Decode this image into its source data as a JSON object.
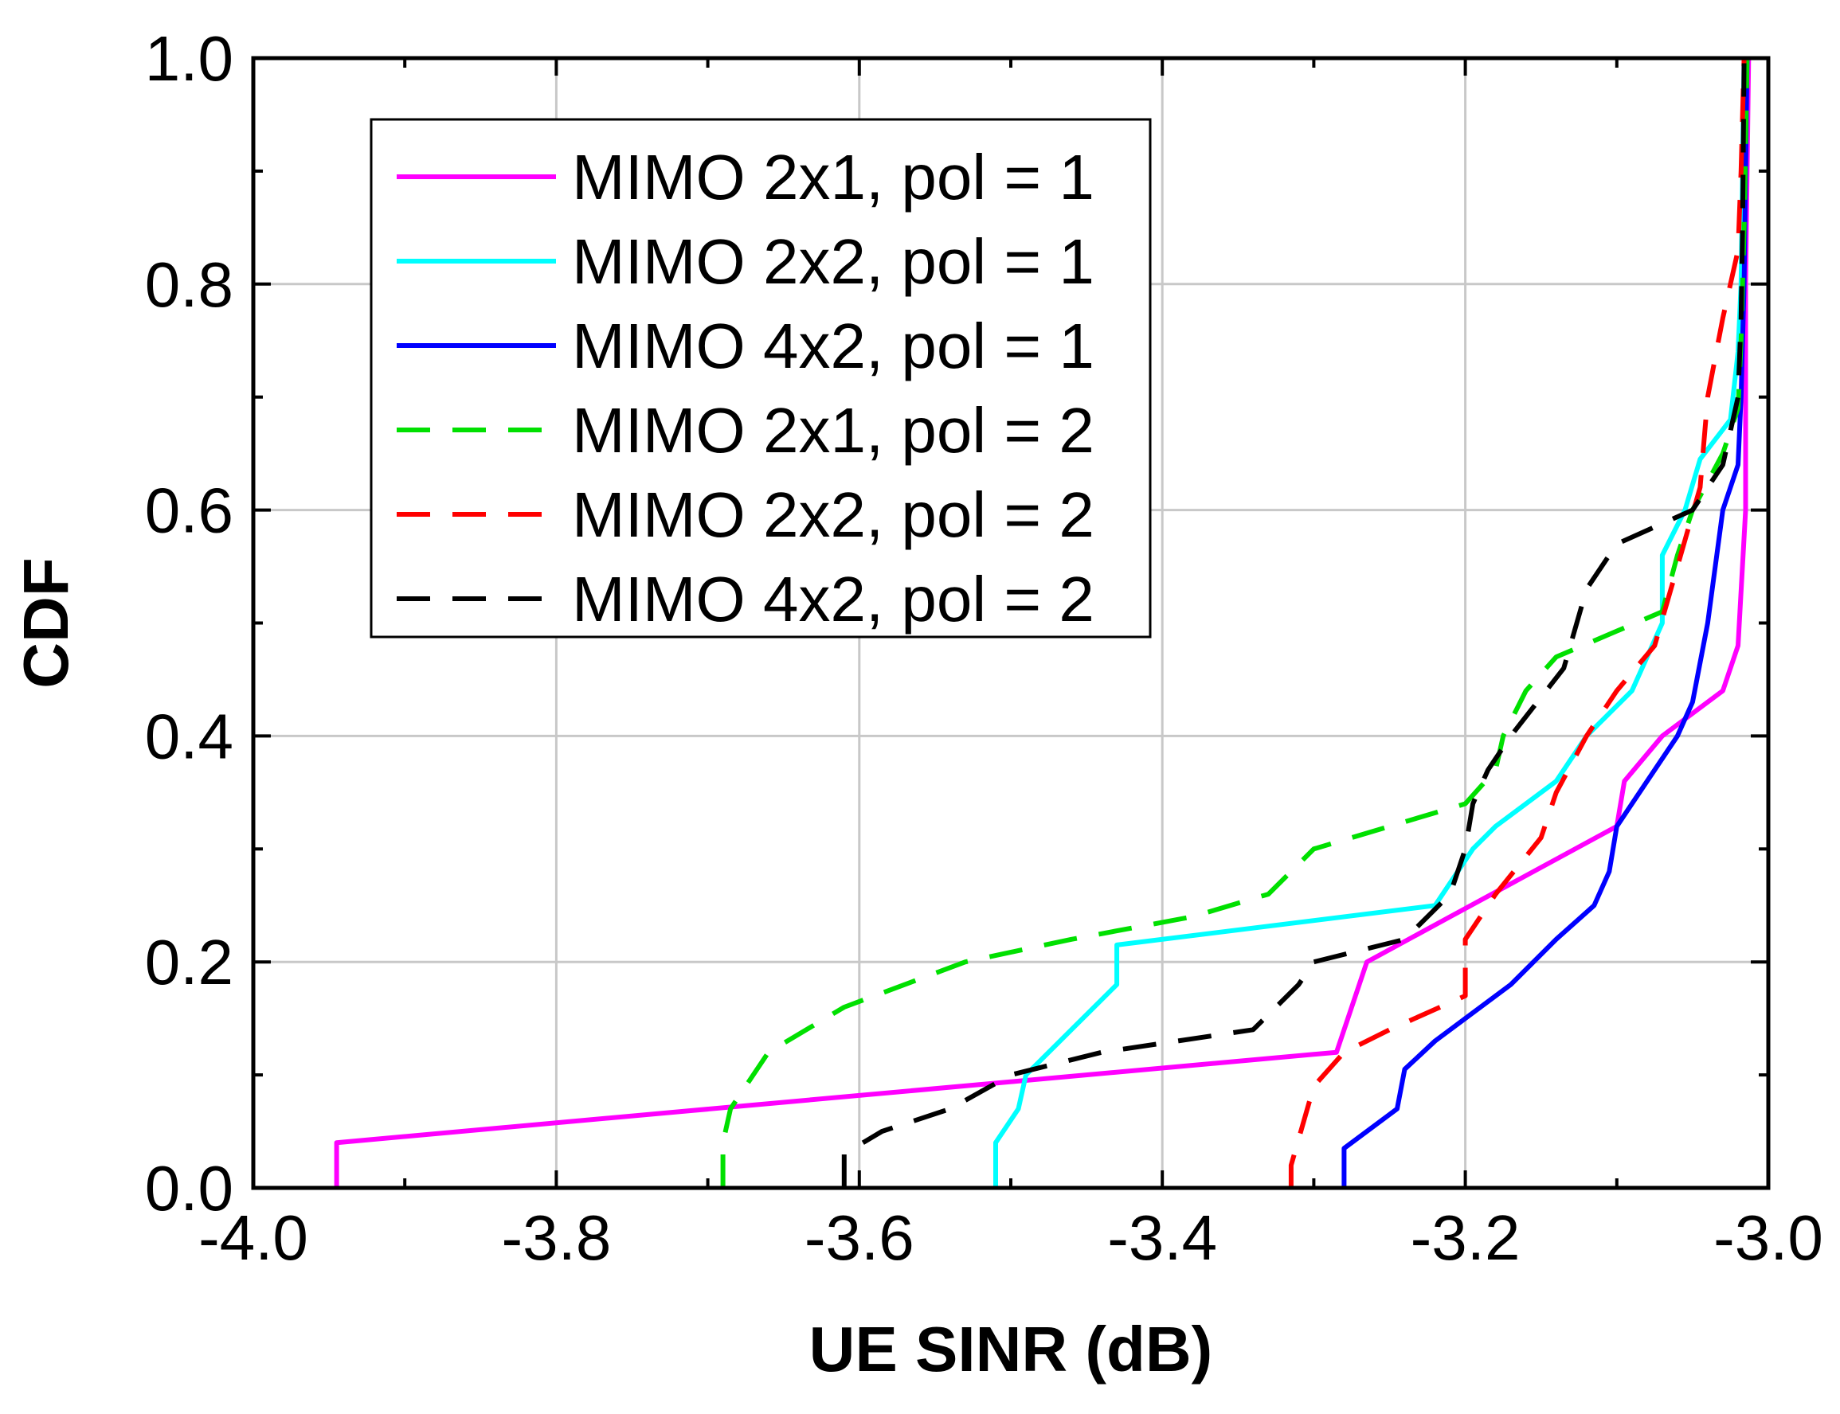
{
  "chart_data": {
    "type": "line",
    "title": "",
    "xlabel": "UE SINR (dB)",
    "ylabel": "CDF",
    "xlim": [
      -4.0,
      -3.0
    ],
    "ylim": [
      0.0,
      1.0
    ],
    "xticks": [
      -4.0,
      -3.8,
      -3.6,
      -3.4,
      -3.2,
      -3.0
    ],
    "yticks": [
      0.0,
      0.2,
      0.4,
      0.6,
      0.8,
      1.0
    ],
    "xtick_labels": [
      "-4.0",
      "-3.8",
      "-3.6",
      "-3.4",
      "-3.2",
      "-3.0"
    ],
    "ytick_labels": [
      "0.0",
      "0.2",
      "0.4",
      "0.6",
      "0.8",
      "1.0"
    ],
    "grid": true,
    "legend_position": "top-left",
    "series": [
      {
        "name": "MIMO 2x1, pol = 1",
        "color": "#ff00ff",
        "dash": "solid",
        "points": [
          [
            -3.945,
            0.0
          ],
          [
            -3.945,
            0.04
          ],
          [
            -3.285,
            0.12
          ],
          [
            -3.265,
            0.2
          ],
          [
            -3.21,
            0.24
          ],
          [
            -3.1,
            0.32
          ],
          [
            -3.095,
            0.36
          ],
          [
            -3.07,
            0.4
          ],
          [
            -3.03,
            0.44
          ],
          [
            -3.02,
            0.48
          ],
          [
            -3.015,
            0.6
          ],
          [
            -3.015,
            0.8
          ],
          [
            -3.013,
            1.0
          ]
        ]
      },
      {
        "name": "MIMO 2x2, pol = 1",
        "color": "#00ffff",
        "dash": "solid",
        "points": [
          [
            -3.51,
            0.0
          ],
          [
            -3.51,
            0.04
          ],
          [
            -3.495,
            0.07
          ],
          [
            -3.49,
            0.1
          ],
          [
            -3.46,
            0.14
          ],
          [
            -3.43,
            0.18
          ],
          [
            -3.43,
            0.215
          ],
          [
            -3.22,
            0.25
          ],
          [
            -3.195,
            0.3
          ],
          [
            -3.18,
            0.32
          ],
          [
            -3.14,
            0.36
          ],
          [
            -3.12,
            0.4
          ],
          [
            -3.09,
            0.44
          ],
          [
            -3.07,
            0.5
          ],
          [
            -3.07,
            0.56
          ],
          [
            -3.055,
            0.6
          ],
          [
            -3.045,
            0.645
          ],
          [
            -3.025,
            0.68
          ],
          [
            -3.02,
            0.74
          ],
          [
            -3.018,
            0.8
          ],
          [
            -3.016,
            1.0
          ]
        ]
      },
      {
        "name": "MIMO 4x2, pol = 1",
        "color": "#0000ff",
        "dash": "solid",
        "points": [
          [
            -3.28,
            0.0
          ],
          [
            -3.28,
            0.035
          ],
          [
            -3.245,
            0.07
          ],
          [
            -3.24,
            0.105
          ],
          [
            -3.22,
            0.13
          ],
          [
            -3.17,
            0.18
          ],
          [
            -3.14,
            0.22
          ],
          [
            -3.115,
            0.25
          ],
          [
            -3.105,
            0.28
          ],
          [
            -3.1,
            0.32
          ],
          [
            -3.08,
            0.36
          ],
          [
            -3.06,
            0.4
          ],
          [
            -3.05,
            0.43
          ],
          [
            -3.04,
            0.5
          ],
          [
            -3.035,
            0.55
          ],
          [
            -3.03,
            0.6
          ],
          [
            -3.02,
            0.64
          ],
          [
            -3.018,
            0.7
          ],
          [
            -3.016,
            0.8
          ],
          [
            -3.014,
            1.0
          ]
        ]
      },
      {
        "name": "MIMO 2x1, pol = 2",
        "color": "#00e000",
        "dash": "dashed",
        "points": [
          [
            -3.69,
            0.0
          ],
          [
            -3.69,
            0.04
          ],
          [
            -3.685,
            0.07
          ],
          [
            -3.66,
            0.12
          ],
          [
            -3.61,
            0.16
          ],
          [
            -3.53,
            0.2
          ],
          [
            -3.46,
            0.22
          ],
          [
            -3.38,
            0.24
          ],
          [
            -3.33,
            0.26
          ],
          [
            -3.3,
            0.3
          ],
          [
            -3.2,
            0.34
          ],
          [
            -3.18,
            0.37
          ],
          [
            -3.175,
            0.4
          ],
          [
            -3.16,
            0.44
          ],
          [
            -3.14,
            0.47
          ],
          [
            -3.07,
            0.51
          ],
          [
            -3.06,
            0.56
          ],
          [
            -3.05,
            0.6
          ],
          [
            -3.03,
            0.65
          ],
          [
            -3.02,
            0.69
          ],
          [
            -3.018,
            0.75
          ],
          [
            -3.016,
            0.85
          ],
          [
            -3.014,
            1.0
          ]
        ]
      },
      {
        "name": "MIMO 2x2, pol = 2",
        "color": "#ff0000",
        "dash": "dashed",
        "points": [
          [
            -3.315,
            0.0
          ],
          [
            -3.315,
            0.02
          ],
          [
            -3.3,
            0.09
          ],
          [
            -3.28,
            0.12
          ],
          [
            -3.25,
            0.14
          ],
          [
            -3.2,
            0.17
          ],
          [
            -3.2,
            0.22
          ],
          [
            -3.18,
            0.26
          ],
          [
            -3.15,
            0.31
          ],
          [
            -3.14,
            0.35
          ],
          [
            -3.12,
            0.4
          ],
          [
            -3.1,
            0.44
          ],
          [
            -3.075,
            0.48
          ],
          [
            -3.06,
            0.55
          ],
          [
            -3.045,
            0.62
          ],
          [
            -3.04,
            0.7
          ],
          [
            -3.03,
            0.77
          ],
          [
            -3.02,
            0.83
          ],
          [
            -3.018,
            0.9
          ],
          [
            -3.016,
            1.0
          ]
        ]
      },
      {
        "name": "MIMO 4x2, pol = 2",
        "color": "#000000",
        "dash": "dashed",
        "points": [
          [
            -3.61,
            0.0
          ],
          [
            -3.61,
            0.03
          ],
          [
            -3.585,
            0.05
          ],
          [
            -3.54,
            0.07
          ],
          [
            -3.5,
            0.1
          ],
          [
            -3.44,
            0.12
          ],
          [
            -3.34,
            0.14
          ],
          [
            -3.31,
            0.18
          ],
          [
            -3.3,
            0.2
          ],
          [
            -3.24,
            0.22
          ],
          [
            -3.21,
            0.26
          ],
          [
            -3.2,
            0.3
          ],
          [
            -3.195,
            0.34
          ],
          [
            -3.185,
            0.37
          ],
          [
            -3.17,
            0.4
          ],
          [
            -3.135,
            0.46
          ],
          [
            -3.12,
            0.53
          ],
          [
            -3.1,
            0.57
          ],
          [
            -3.05,
            0.6
          ],
          [
            -3.03,
            0.64
          ],
          [
            -3.02,
            0.7
          ],
          [
            -3.018,
            0.77
          ],
          [
            -3.017,
            0.85
          ],
          [
            -3.016,
            1.0
          ]
        ]
      }
    ]
  }
}
